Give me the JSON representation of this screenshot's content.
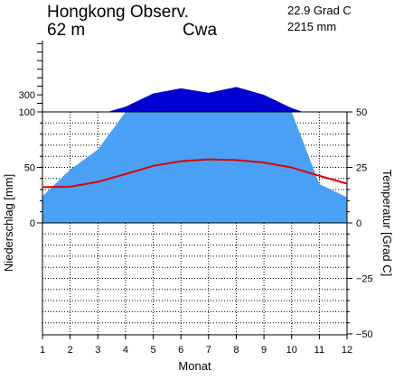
{
  "header": {
    "station": "Hongkong Observ.",
    "elevation": "62 m",
    "climate_class": "Cwa",
    "mean_temp": "22.9 Grad C",
    "annual_precip": "2215 mm"
  },
  "colors": {
    "precip_fill": "#4aa0f5",
    "precip_excess_fill": "#0000d0",
    "temp_line": "#dd0000",
    "grid": "#000000"
  },
  "chart_data": {
    "type": "area",
    "xlabel": "Monat",
    "ylabel_left": "Niederschlag [mm]",
    "ylabel_right": "Temperatur [Grad C]",
    "x": [
      1,
      2,
      3,
      4,
      5,
      6,
      7,
      8,
      9,
      10,
      11,
      12
    ],
    "x_ticks": [
      "1",
      "2",
      "3",
      "4",
      "5",
      "6",
      "7",
      "8",
      "9",
      "10",
      "11",
      "12"
    ],
    "left_ticks": [
      "300",
      "100",
      "50",
      "0"
    ],
    "right_ticks": [
      "50",
      "25",
      "0",
      "−25",
      "−50"
    ],
    "precip_ylim": [
      0,
      100
    ],
    "precip_upper_ylim": [
      100,
      400
    ],
    "temp_ylim": [
      -50,
      50
    ],
    "grid": true,
    "series": [
      {
        "values": [
          24,
          48,
          66,
          161,
          316,
          376,
          323,
          392,
          300,
          145,
          35,
          23
        ]
      },
      {
        "values": [
          16.1,
          16.3,
          18.5,
          22.0,
          25.7,
          27.8,
          28.6,
          28.3,
          27.2,
          24.9,
          21.2,
          17.7
        ]
      }
    ]
  }
}
